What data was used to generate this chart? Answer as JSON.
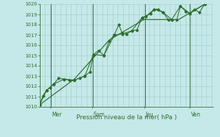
{
  "xlabel": "Pression niveau de la mer( hPa )",
  "background_color": "#c5e8e8",
  "grid_color": "#9cc8c8",
  "line_color": "#2d6e2d",
  "ylim": [
    1010,
    1020
  ],
  "yticks": [
    1010,
    1011,
    1012,
    1013,
    1014,
    1015,
    1016,
    1017,
    1018,
    1019,
    1020
  ],
  "xlim": [
    0,
    10
  ],
  "day_labels": [
    "Mer",
    "Sam",
    "Jeu",
    "Ven"
  ],
  "day_positions": [
    0.7,
    3.1,
    6.1,
    8.7
  ],
  "vline_positions": [
    0.65,
    3.05,
    6.05,
    8.65
  ],
  "series1_x": [
    0.0,
    0.2,
    0.4,
    0.6,
    0.8,
    1.1,
    1.4,
    1.7,
    2.0,
    2.3,
    2.6,
    2.9,
    3.1,
    3.4,
    3.7,
    4.0,
    4.3,
    4.55,
    4.75,
    5.0,
    5.3,
    5.6,
    5.9,
    6.1,
    6.4,
    6.6,
    6.8,
    7.1,
    7.4,
    7.6,
    7.9,
    8.1,
    8.4,
    8.65,
    8.9,
    9.2,
    9.5
  ],
  "series1_y": [
    1010.2,
    1011.1,
    1011.6,
    1011.9,
    1012.2,
    1012.8,
    1012.7,
    1012.6,
    1012.6,
    1012.8,
    1013.0,
    1013.4,
    1015.1,
    1015.5,
    1015.0,
    1016.4,
    1017.0,
    1018.0,
    1017.2,
    1017.1,
    1017.4,
    1017.5,
    1018.7,
    1018.8,
    1019.1,
    1019.5,
    1019.5,
    1019.2,
    1018.5,
    1018.5,
    1018.5,
    1019.8,
    1019.3,
    1019.1,
    1019.5,
    1019.2,
    1020.0
  ],
  "series2_x": [
    0.0,
    0.4,
    0.8,
    1.4,
    2.0,
    2.6,
    3.1,
    3.7,
    4.3,
    4.75,
    5.3,
    5.9,
    6.1,
    6.6,
    7.1,
    7.6,
    8.1,
    8.65,
    9.5
  ],
  "series2_y": [
    1010.2,
    1011.6,
    1012.2,
    1012.7,
    1012.6,
    1013.0,
    1015.1,
    1015.0,
    1017.0,
    1017.1,
    1017.4,
    1018.7,
    1018.8,
    1019.5,
    1019.2,
    1018.5,
    1019.8,
    1019.1,
    1020.0
  ],
  "series3_x": [
    0.0,
    2.0,
    4.0,
    6.0,
    8.0,
    9.5
  ],
  "series3_y": [
    1010.2,
    1012.7,
    1016.5,
    1018.5,
    1018.5,
    1020.0
  ]
}
